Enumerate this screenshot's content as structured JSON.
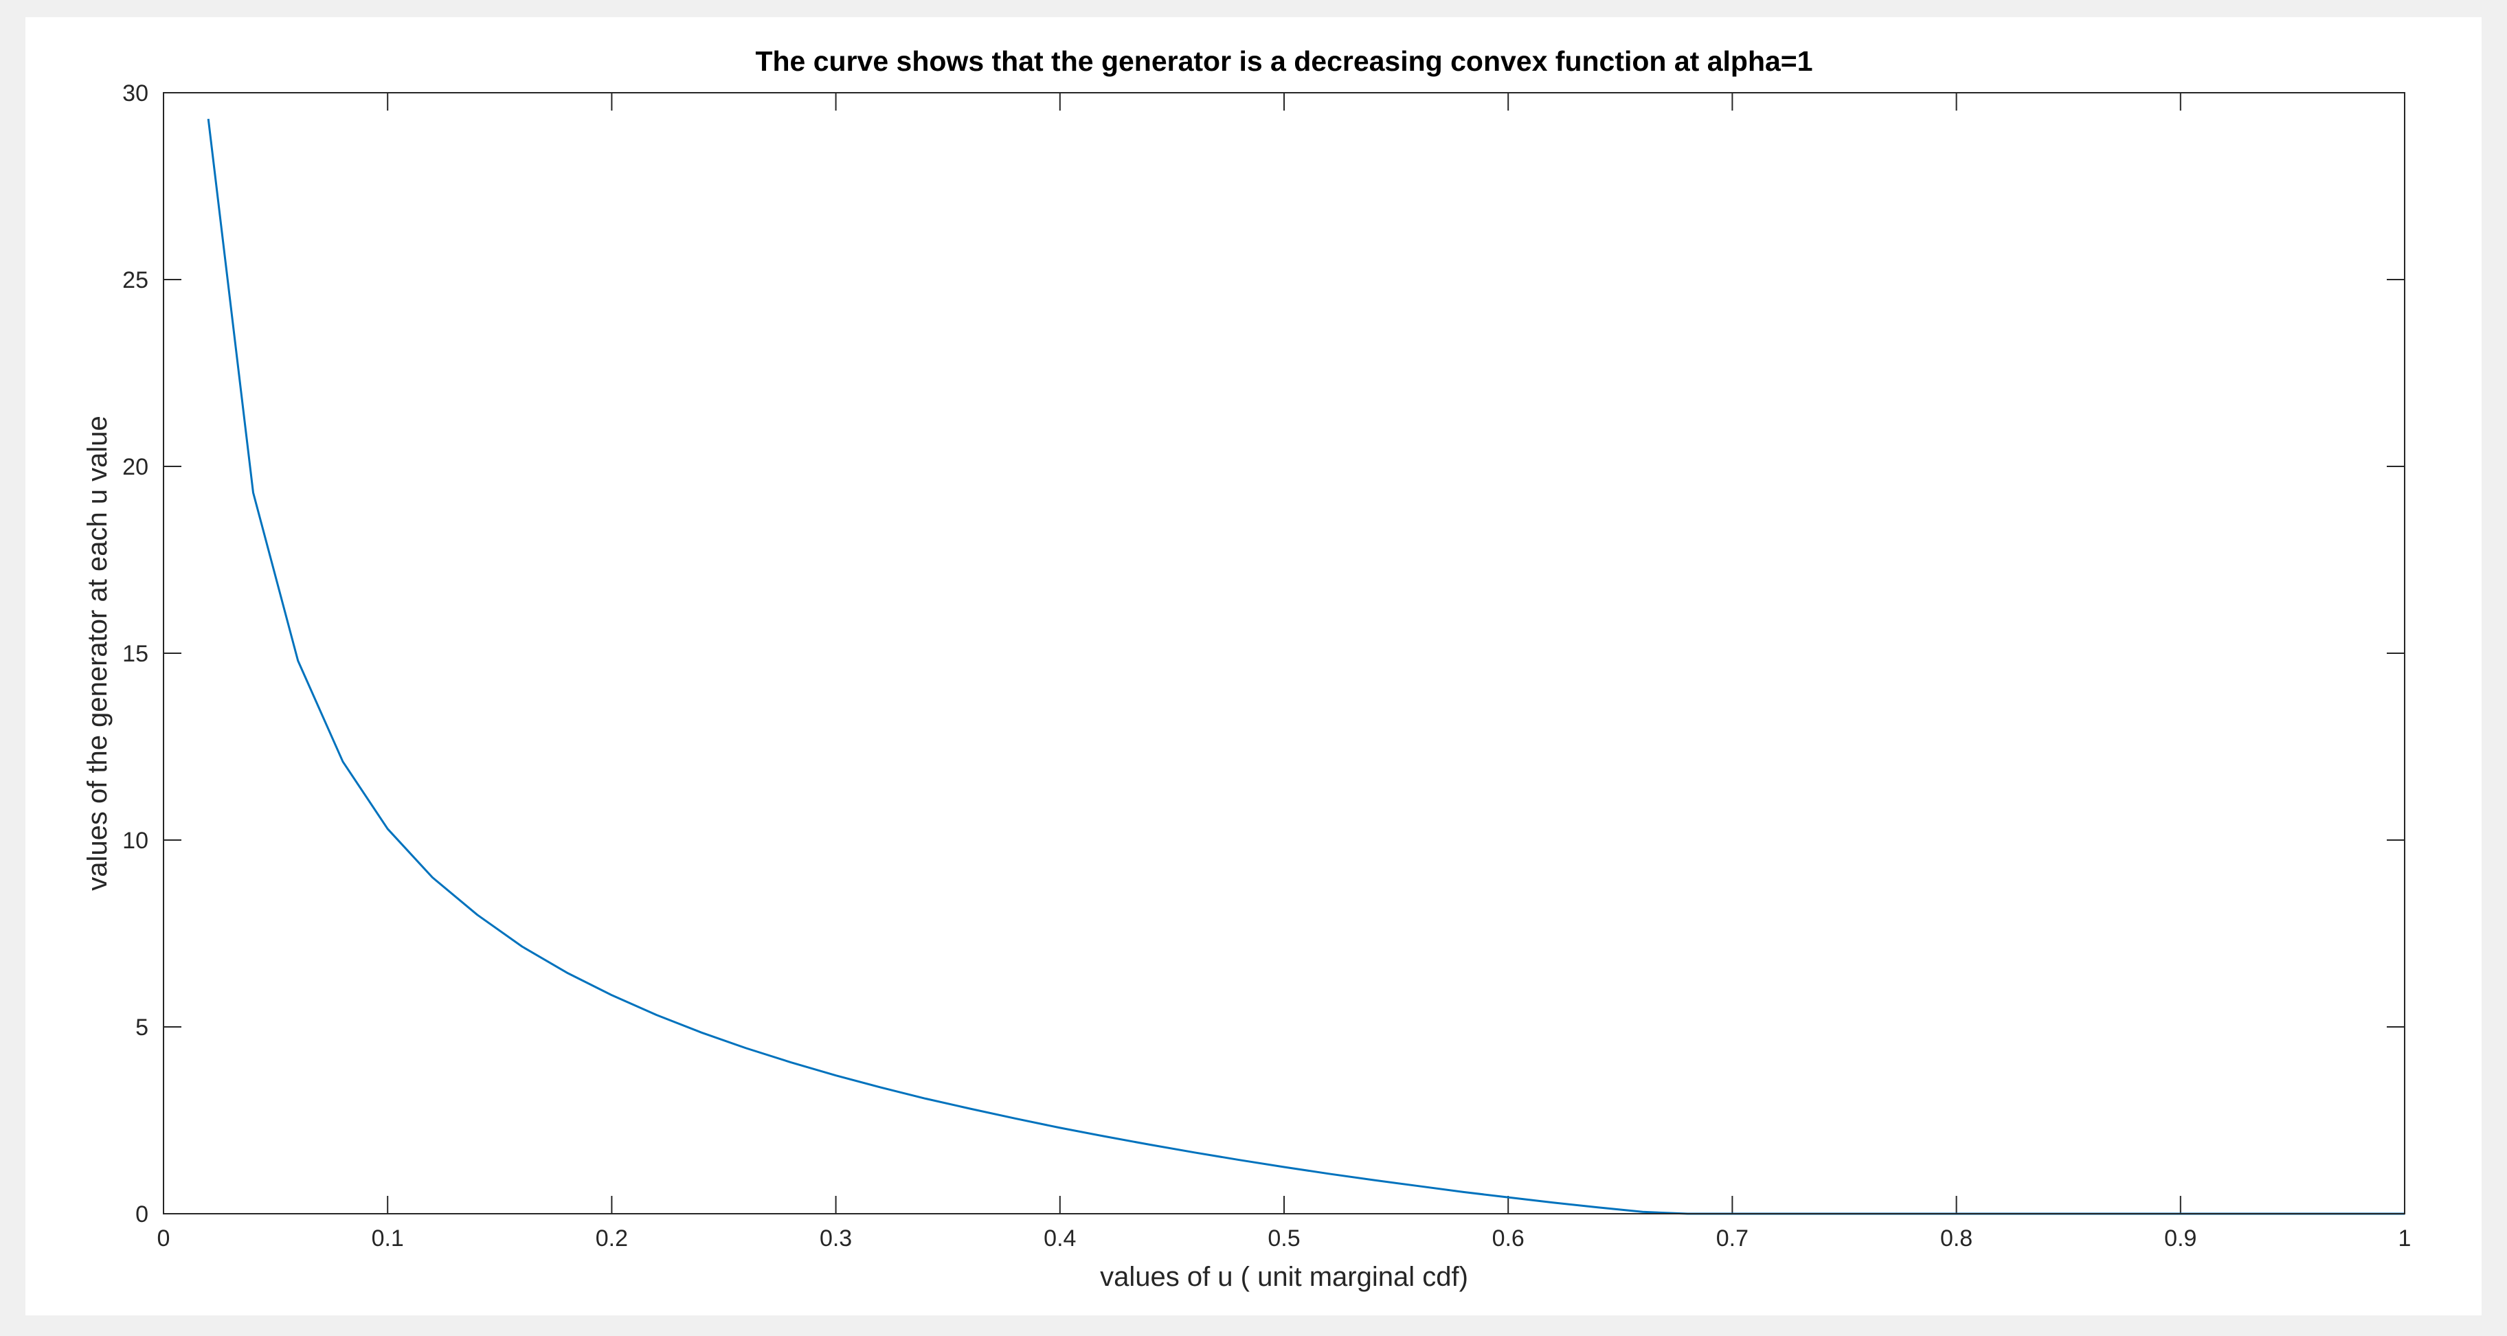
{
  "chart_data": {
    "type": "line",
    "title": "The curve shows that the generator is a decreasing convex function at alpha=1",
    "xlabel": "values of u ( unit marginal cdf)",
    "ylabel": "values of the generator at each u value",
    "xlim": [
      0,
      1
    ],
    "ylim": [
      0,
      30
    ],
    "xticks": [
      0,
      0.1,
      0.2,
      0.3,
      0.4,
      0.5,
      0.6,
      0.7,
      0.8,
      0.9,
      1
    ],
    "xtick_labels": [
      "0",
      "0.1",
      "0.2",
      "0.3",
      "0.4",
      "0.5",
      "0.6",
      "0.7",
      "0.8",
      "0.9",
      "1"
    ],
    "yticks": [
      0,
      5,
      10,
      15,
      20,
      25,
      30
    ],
    "ytick_labels": [
      "0",
      "5",
      "10",
      "15",
      "20",
      "25",
      "30"
    ],
    "grid": false,
    "legend": "none",
    "series": [
      {
        "color": "#0072bd",
        "x": [
          0.02,
          0.04,
          0.06,
          0.08,
          0.1,
          0.12,
          0.14,
          0.16,
          0.18,
          0.2,
          0.22,
          0.24,
          0.26,
          0.28,
          0.3,
          0.32,
          0.34,
          0.36,
          0.38,
          0.4,
          0.42,
          0.44,
          0.46,
          0.48,
          0.5,
          0.52,
          0.54,
          0.56,
          0.58,
          0.6,
          0.62,
          0.64,
          0.66,
          0.68,
          0.7,
          0.72,
          0.74,
          0.76,
          0.78,
          0.8,
          0.82,
          0.84,
          0.86,
          0.88,
          0.9,
          0.92,
          0.94,
          0.96,
          0.98,
          1.0
        ],
        "y": [
          29.3,
          19.3,
          14.8,
          12.1,
          10.3,
          9.0,
          8.0,
          7.15,
          6.45,
          5.85,
          5.32,
          4.85,
          4.43,
          4.05,
          3.7,
          3.38,
          3.08,
          2.81,
          2.55,
          2.3,
          2.07,
          1.85,
          1.64,
          1.44,
          1.25,
          1.07,
          0.9,
          0.74,
          0.58,
          0.44,
          0.3,
          0.17,
          0.05,
          -0.05,
          -0.15,
          -0.25,
          -0.34,
          -0.42,
          -0.5,
          -0.57,
          -0.64,
          -0.7,
          -0.75,
          -0.8,
          -0.85,
          -0.89,
          -0.93,
          -0.96,
          -0.98,
          0.0
        ]
      }
    ]
  }
}
